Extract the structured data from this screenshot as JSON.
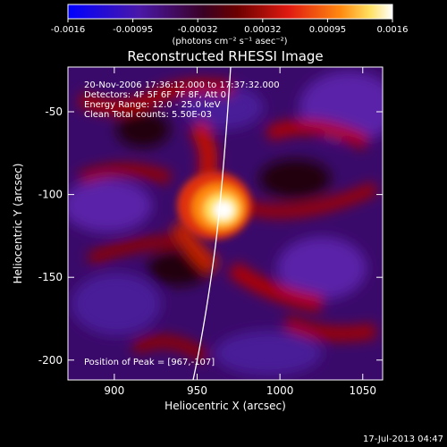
{
  "colorbar": {
    "tick_labels": [
      "-0.0016",
      "-0.00095",
      "-0.00032",
      "0.00032",
      "0.00095",
      "0.0016"
    ],
    "units_label": "(photons cm⁻² s⁻¹ asec⁻²)"
  },
  "plot": {
    "title": "Reconstructed RHESSI Image",
    "x_label": "Heliocentric X (arcsec)",
    "y_label": "Heliocentric Y (arcsec)",
    "x_ticks": [
      "900",
      "950",
      "1000",
      "1050"
    ],
    "y_ticks": [
      "-50",
      "-100",
      "-150",
      "-200"
    ],
    "info_lines": [
      "20-Nov-2006 17:36:12.000 to 17:37:32.000",
      "Detectors: 4F 5F 6F 7F 8F, Att 0",
      "Energy Range: 12.0 - 25.0 keV",
      "Clean      Total counts: 5.50E-03"
    ],
    "peak_label": "Position of Peak = [967,-107]"
  },
  "footer": {
    "date_stamp": "17-Jul-2013 04:47"
  },
  "colors": {
    "background": "#000000",
    "text": "#ffffff",
    "colormap": [
      "#0000ff",
      "#3a0a8c",
      "#2a0010",
      "#7a0000",
      "#d81010",
      "#ff6a00",
      "#ffd34a",
      "#ffffff"
    ]
  }
}
